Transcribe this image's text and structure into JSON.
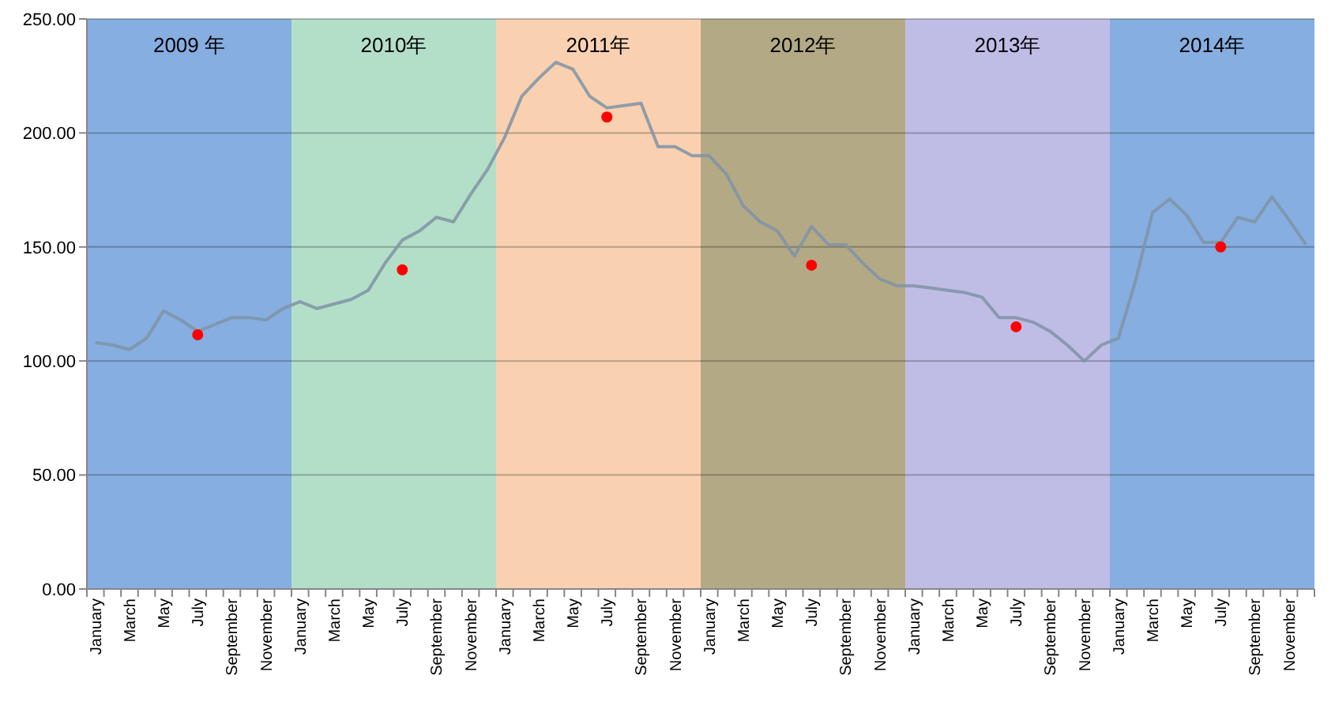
{
  "chart_data": {
    "type": "line",
    "categories": [
      "January",
      null,
      "March",
      null,
      "May",
      null,
      "July",
      null,
      "September",
      null,
      "November",
      null,
      "January",
      null,
      "March",
      null,
      "May",
      null,
      "July",
      null,
      "September",
      null,
      "November",
      null,
      "January",
      null,
      "March",
      null,
      "May",
      null,
      "July",
      null,
      "September",
      null,
      "November",
      null,
      "January",
      null,
      "March",
      null,
      "May",
      null,
      "July",
      null,
      "September",
      null,
      "November",
      null,
      "January",
      null,
      "March",
      null,
      "May",
      null,
      "July",
      null,
      "September",
      null,
      "November",
      null,
      "January",
      null,
      "March",
      null,
      "May",
      null,
      "July",
      null,
      "September",
      null,
      "November",
      null
    ],
    "series": [
      {
        "color": "#7f93a6",
        "marker": "none",
        "values": [
          108,
          107,
          105,
          110,
          122,
          118,
          113,
          116,
          119,
          119,
          118,
          123,
          126,
          123,
          125,
          127,
          131,
          143,
          153,
          157,
          163,
          161,
          173,
          184,
          198,
          216,
          224,
          231,
          228,
          216,
          211,
          212,
          213,
          194,
          194,
          190,
          190,
          182,
          168,
          161,
          157,
          146,
          159,
          151,
          151,
          143,
          136,
          133,
          133,
          132,
          131,
          130,
          128,
          119,
          119,
          117,
          113,
          107,
          100,
          107,
          110,
          135,
          165,
          171,
          164,
          152,
          152,
          163,
          161,
          172,
          162,
          151
        ]
      },
      {
        "type": "scatter",
        "color": "#ff0000",
        "marker": "circle",
        "values": [
          null,
          null,
          null,
          null,
          null,
          null,
          111.5,
          null,
          null,
          null,
          null,
          null,
          null,
          null,
          null,
          null,
          null,
          null,
          140,
          null,
          null,
          null,
          null,
          null,
          null,
          null,
          null,
          null,
          null,
          null,
          207,
          null,
          null,
          null,
          null,
          null,
          null,
          null,
          null,
          null,
          null,
          null,
          142,
          null,
          null,
          null,
          null,
          null,
          null,
          null,
          null,
          null,
          null,
          null,
          115,
          null,
          null,
          null,
          null,
          null,
          null,
          null,
          null,
          null,
          null,
          null,
          150,
          null,
          null,
          null,
          null,
          null
        ]
      }
    ],
    "annotations": [
      "2009 年",
      "2010年",
      "2011年",
      "2012年",
      "2013年",
      "2014年"
    ],
    "ylim": [
      0,
      250
    ],
    "yticks": [
      {
        "value": 0,
        "label": "0.00"
      },
      {
        "value": 50,
        "label": "50.00"
      },
      {
        "value": 100,
        "label": "100.00"
      },
      {
        "value": 150,
        "label": "150.00"
      },
      {
        "value": 200,
        "label": "200.00"
      },
      {
        "value": 250,
        "label": "250.00"
      }
    ],
    "grid": "y"
  }
}
